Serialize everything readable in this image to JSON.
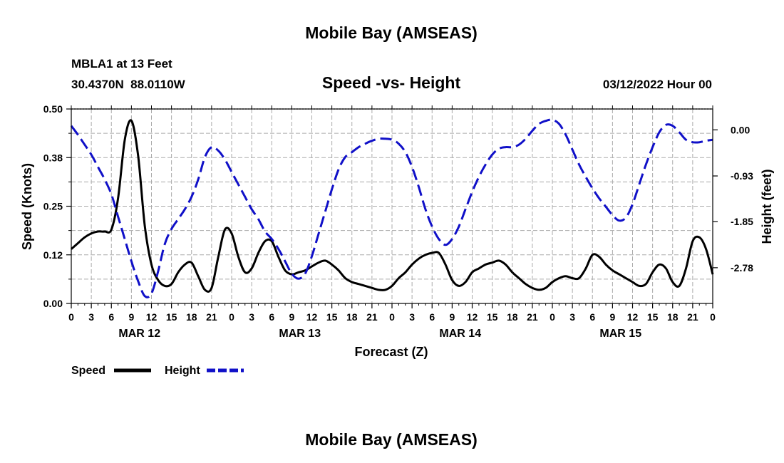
{
  "header": {
    "title": "Mobile Bay (AMSEAS)",
    "station": "MBLA1 at 13 Feet",
    "coords": "30.4370N  88.0110W",
    "subtitle": "Speed -vs- Height",
    "datetime": "03/12/2022 Hour 00"
  },
  "footer": {
    "title": "Mobile Bay (AMSEAS)"
  },
  "colors": {
    "speed": "#000000",
    "height": "#1010c8",
    "grid": "#aaaaaa"
  },
  "chart_data": {
    "type": "line",
    "title": "Speed -vs- Height",
    "xlabel": "Forecast (Z)",
    "ylabel_left": "Speed (Knots)",
    "ylabel_right": "Height (feet)",
    "x_ticks": [
      "0",
      "3",
      "6",
      "9",
      "12",
      "15",
      "18",
      "21",
      "0",
      "3",
      "6",
      "9",
      "12",
      "15",
      "18",
      "21",
      "0",
      "3",
      "6",
      "9",
      "12",
      "15",
      "18",
      "21",
      "0",
      "3",
      "6",
      "9",
      "12",
      "15",
      "18",
      "21",
      "0"
    ],
    "x_range_hours": [
      0,
      96
    ],
    "date_labels": [
      {
        "label": "MAR 12",
        "hour": 10
      },
      {
        "label": "MAR 13",
        "hour": 34
      },
      {
        "label": "MAR 14",
        "hour": 58
      },
      {
        "label": "MAR 15",
        "hour": 82
      }
    ],
    "y_left": {
      "range": [
        0,
        0.5
      ],
      "ticks": [
        0.0,
        0.125,
        0.25,
        0.375,
        0.5
      ],
      "tick_labels": [
        "0.00",
        "0.12",
        "0.25",
        "0.38",
        "0.50"
      ]
    },
    "y_right": {
      "range": [
        -3.5,
        0.42
      ],
      "ticks": [
        0.0,
        -0.93,
        -1.85,
        -2.78
      ],
      "tick_labels": [
        "0.00",
        "-0.93",
        "-1.85",
        "-2.78"
      ]
    },
    "grid": true,
    "legend": {
      "position": "bottom-left",
      "entries": [
        "Speed",
        "Height"
      ]
    },
    "series": [
      {
        "name": "Speed",
        "axis": "left",
        "style": "solid",
        "points": [
          [
            0,
            0.14
          ],
          [
            1,
            0.155
          ],
          [
            2,
            0.17
          ],
          [
            3,
            0.18
          ],
          [
            4,
            0.185
          ],
          [
            5,
            0.185
          ],
          [
            6,
            0.19
          ],
          [
            7,
            0.27
          ],
          [
            8,
            0.42
          ],
          [
            9,
            0.47
          ],
          [
            10,
            0.38
          ],
          [
            11,
            0.2
          ],
          [
            12,
            0.1
          ],
          [
            13,
            0.06
          ],
          [
            14,
            0.045
          ],
          [
            15,
            0.05
          ],
          [
            16,
            0.08
          ],
          [
            17,
            0.1
          ],
          [
            18,
            0.105
          ],
          [
            19,
            0.07
          ],
          [
            20,
            0.035
          ],
          [
            21,
            0.04
          ],
          [
            22,
            0.12
          ],
          [
            23,
            0.19
          ],
          [
            24,
            0.18
          ],
          [
            25,
            0.12
          ],
          [
            26,
            0.08
          ],
          [
            27,
            0.09
          ],
          [
            28,
            0.13
          ],
          [
            29,
            0.16
          ],
          [
            30,
            0.16
          ],
          [
            31,
            0.12
          ],
          [
            32,
            0.085
          ],
          [
            33,
            0.075
          ],
          [
            34,
            0.08
          ],
          [
            35,
            0.085
          ],
          [
            36,
            0.095
          ],
          [
            37,
            0.105
          ],
          [
            38,
            0.11
          ],
          [
            39,
            0.1
          ],
          [
            40,
            0.085
          ],
          [
            41,
            0.065
          ],
          [
            42,
            0.055
          ],
          [
            43,
            0.05
          ],
          [
            44,
            0.045
          ],
          [
            45,
            0.04
          ],
          [
            46,
            0.035
          ],
          [
            47,
            0.035
          ],
          [
            48,
            0.045
          ],
          [
            49,
            0.065
          ],
          [
            50,
            0.08
          ],
          [
            51,
            0.1
          ],
          [
            52,
            0.115
          ],
          [
            53,
            0.125
          ],
          [
            54,
            0.13
          ],
          [
            55,
            0.13
          ],
          [
            56,
            0.1
          ],
          [
            57,
            0.06
          ],
          [
            58,
            0.045
          ],
          [
            59,
            0.055
          ],
          [
            60,
            0.08
          ],
          [
            61,
            0.09
          ],
          [
            62,
            0.1
          ],
          [
            63,
            0.105
          ],
          [
            64,
            0.11
          ],
          [
            65,
            0.1
          ],
          [
            66,
            0.08
          ],
          [
            67,
            0.065
          ],
          [
            68,
            0.05
          ],
          [
            69,
            0.04
          ],
          [
            70,
            0.035
          ],
          [
            71,
            0.04
          ],
          [
            72,
            0.055
          ],
          [
            73,
            0.065
          ],
          [
            74,
            0.07
          ],
          [
            75,
            0.065
          ],
          [
            76,
            0.065
          ],
          [
            77,
            0.09
          ],
          [
            78,
            0.125
          ],
          [
            79,
            0.12
          ],
          [
            80,
            0.1
          ],
          [
            81,
            0.085
          ],
          [
            82,
            0.075
          ],
          [
            83,
            0.065
          ],
          [
            84,
            0.055
          ],
          [
            85,
            0.045
          ],
          [
            86,
            0.05
          ],
          [
            87,
            0.08
          ],
          [
            88,
            0.1
          ],
          [
            89,
            0.09
          ],
          [
            90,
            0.055
          ],
          [
            91,
            0.045
          ],
          [
            92,
            0.09
          ],
          [
            93,
            0.16
          ],
          [
            94,
            0.17
          ],
          [
            95,
            0.14
          ],
          [
            96,
            0.075
          ]
        ]
      },
      {
        "name": "Height",
        "axis": "right",
        "style": "dashed",
        "points": [
          [
            0,
            0.08
          ],
          [
            1,
            -0.1
          ],
          [
            2,
            -0.3
          ],
          [
            3,
            -0.5
          ],
          [
            4,
            -0.75
          ],
          [
            5,
            -1.0
          ],
          [
            6,
            -1.3
          ],
          [
            7,
            -1.75
          ],
          [
            8,
            -2.2
          ],
          [
            9,
            -2.65
          ],
          [
            10,
            -3.05
          ],
          [
            11,
            -3.35
          ],
          [
            12,
            -3.3
          ],
          [
            13,
            -2.85
          ],
          [
            14,
            -2.3
          ],
          [
            15,
            -2.0
          ],
          [
            16,
            -1.8
          ],
          [
            17,
            -1.6
          ],
          [
            18,
            -1.35
          ],
          [
            19,
            -1.0
          ],
          [
            20,
            -0.55
          ],
          [
            21,
            -0.35
          ],
          [
            22,
            -0.42
          ],
          [
            23,
            -0.6
          ],
          [
            24,
            -0.85
          ],
          [
            25,
            -1.1
          ],
          [
            26,
            -1.35
          ],
          [
            27,
            -1.6
          ],
          [
            28,
            -1.8
          ],
          [
            29,
            -2.05
          ],
          [
            30,
            -2.2
          ],
          [
            31,
            -2.4
          ],
          [
            32,
            -2.65
          ],
          [
            33,
            -2.9
          ],
          [
            34,
            -3.0
          ],
          [
            35,
            -2.9
          ],
          [
            36,
            -2.55
          ],
          [
            37,
            -2.1
          ],
          [
            38,
            -1.65
          ],
          [
            39,
            -1.2
          ],
          [
            40,
            -0.8
          ],
          [
            41,
            -0.55
          ],
          [
            42,
            -0.45
          ],
          [
            43,
            -0.35
          ],
          [
            44,
            -0.28
          ],
          [
            45,
            -0.22
          ],
          [
            46,
            -0.18
          ],
          [
            47,
            -0.18
          ],
          [
            48,
            -0.2
          ],
          [
            49,
            -0.28
          ],
          [
            50,
            -0.45
          ],
          [
            51,
            -0.75
          ],
          [
            52,
            -1.15
          ],
          [
            53,
            -1.6
          ],
          [
            54,
            -1.95
          ],
          [
            55,
            -2.2
          ],
          [
            56,
            -2.32
          ],
          [
            57,
            -2.2
          ],
          [
            58,
            -1.95
          ],
          [
            59,
            -1.6
          ],
          [
            60,
            -1.25
          ],
          [
            61,
            -0.95
          ],
          [
            62,
            -0.7
          ],
          [
            63,
            -0.5
          ],
          [
            64,
            -0.38
          ],
          [
            65,
            -0.35
          ],
          [
            66,
            -0.35
          ],
          [
            67,
            -0.3
          ],
          [
            68,
            -0.18
          ],
          [
            69,
            -0.02
          ],
          [
            70,
            0.12
          ],
          [
            71,
            0.18
          ],
          [
            72,
            0.2
          ],
          [
            73,
            0.12
          ],
          [
            74,
            -0.1
          ],
          [
            75,
            -0.4
          ],
          [
            76,
            -0.7
          ],
          [
            77,
            -0.95
          ],
          [
            78,
            -1.18
          ],
          [
            79,
            -1.38
          ],
          [
            80,
            -1.55
          ],
          [
            81,
            -1.72
          ],
          [
            82,
            -1.83
          ],
          [
            83,
            -1.77
          ],
          [
            84,
            -1.5
          ],
          [
            85,
            -1.1
          ],
          [
            86,
            -0.7
          ],
          [
            87,
            -0.35
          ],
          [
            88,
            -0.05
          ],
          [
            89,
            0.1
          ],
          [
            90,
            0.08
          ],
          [
            91,
            -0.05
          ],
          [
            92,
            -0.2
          ],
          [
            93,
            -0.25
          ],
          [
            94,
            -0.25
          ],
          [
            95,
            -0.22
          ],
          [
            96,
            -0.2
          ]
        ]
      }
    ]
  }
}
